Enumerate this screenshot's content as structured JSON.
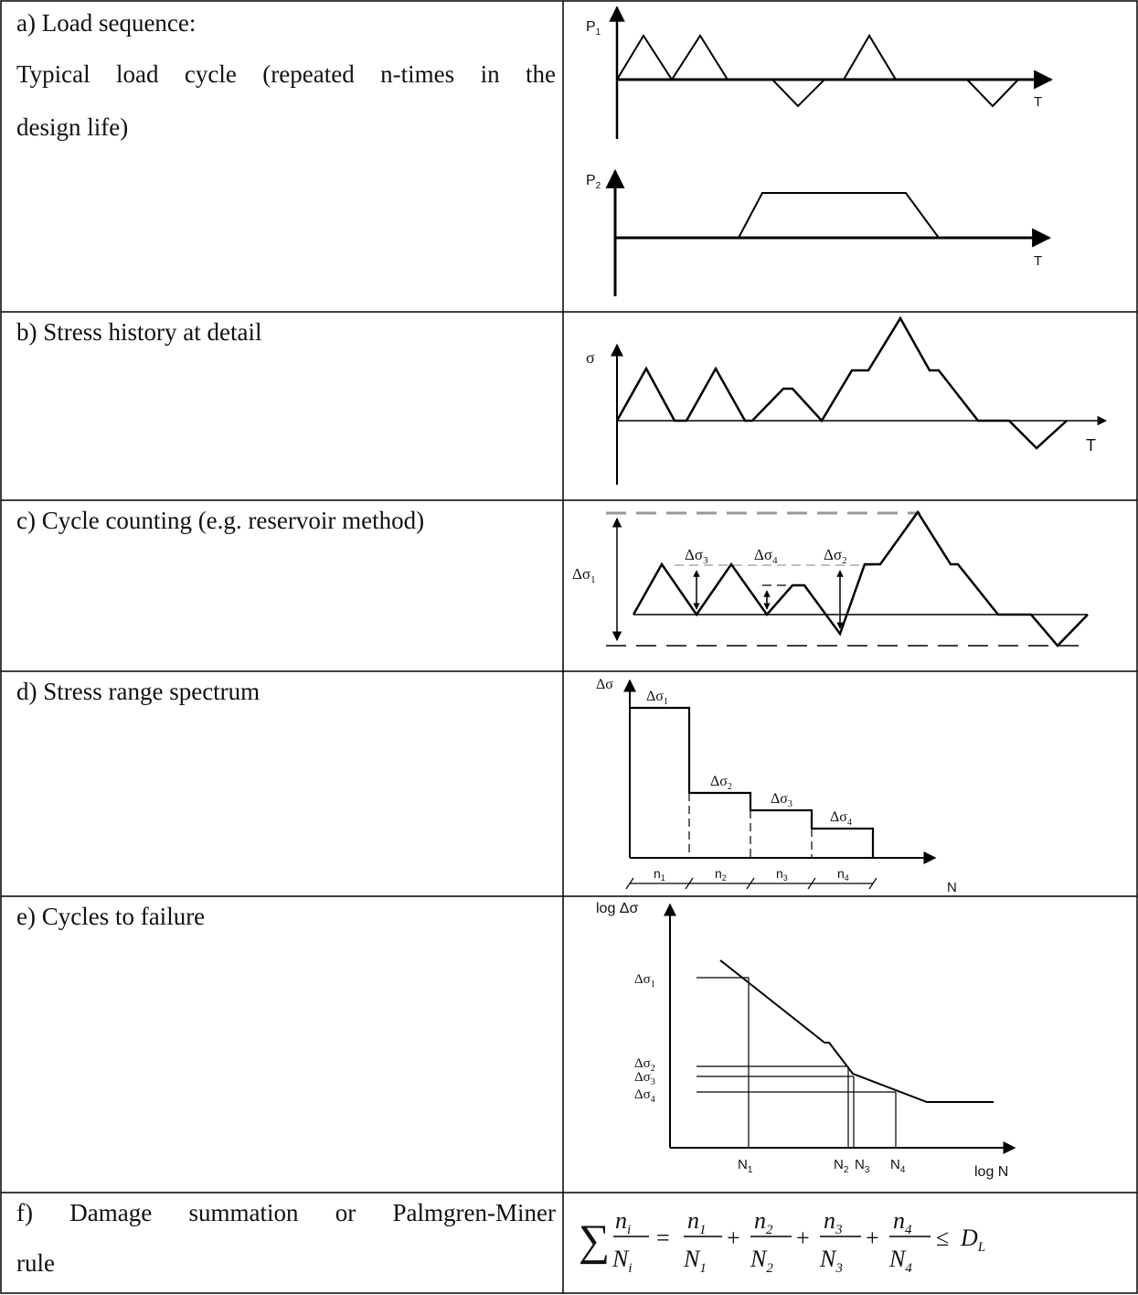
{
  "rows": {
    "a": {
      "title": "a) Load sequence:",
      "desc1": "Typical load cycle (repeated n-times in the",
      "desc2": "design life)"
    },
    "b": {
      "title": "b) Stress history at detail"
    },
    "c": {
      "title": "c) Cycle counting (e.g. reservoir method)"
    },
    "d": {
      "title": "d) Stress range spectrum"
    },
    "e": {
      "title": "e) Cycles to failure"
    },
    "f": {
      "title1": "f)  Damage  summation  or  Palmgren-Miner",
      "title2": "rule"
    }
  },
  "diagrams": {
    "a": {
      "p1": "P",
      "p1_sub": "1",
      "p2": "P",
      "p2_sub": "2",
      "t": "T"
    },
    "b": {
      "sigma": "σ",
      "t": "T"
    },
    "c": {
      "d1": "Δσ",
      "d1_sub": "1",
      "d2": "Δσ",
      "d2_sub": "2",
      "d3": "Δσ",
      "d3_sub": "3",
      "d4": "Δσ",
      "d4_sub": "4"
    },
    "d": {
      "y": "Δσ",
      "l1": "Δσ",
      "l1_sub": "1",
      "l2": "Δσ",
      "l2_sub": "2",
      "l3": "Δσ",
      "l3_sub": "3",
      "l4": "Δσ",
      "l4_sub": "4",
      "n1": "n",
      "n1_sub": "1",
      "n2": "n",
      "n2_sub": "2",
      "n3": "n",
      "n3_sub": "3",
      "n4": "n",
      "n4_sub": "4",
      "x": "N"
    },
    "e": {
      "y": "log Δσ",
      "x": "log N",
      "s1": "Δσ",
      "s1_sub": "1",
      "s2": "Δσ",
      "s2_sub": "2",
      "s3": "Δσ",
      "s3_sub": "3",
      "s4": "Δσ",
      "s4_sub": "4",
      "N1": "N",
      "N1_sub": "1",
      "N2": "N",
      "N2_sub": "2",
      "N3": "N",
      "N3_sub": "3",
      "N4": "N",
      "N4_sub": "4"
    },
    "f": {
      "sum": "∑",
      "ni": "n",
      "ni_sub": "i",
      "Ni": "N",
      "Ni_sub": "i",
      "t1n": "n",
      "t1n_sub": "1",
      "t1d": "N",
      "t1d_sub": "1",
      "t2n": "n",
      "t2n_sub": "2",
      "t2d": "N",
      "t2d_sub": "2",
      "t3n": "n",
      "t3n_sub": "3",
      "t3d": "N",
      "t3d_sub": "3",
      "t4n": "n",
      "t4n_sub": "4",
      "t4d": "N",
      "t4d_sub": "4",
      "eq": "=",
      "plus": "+",
      "le": "≤",
      "D": "D",
      "D_sub": "L"
    }
  }
}
